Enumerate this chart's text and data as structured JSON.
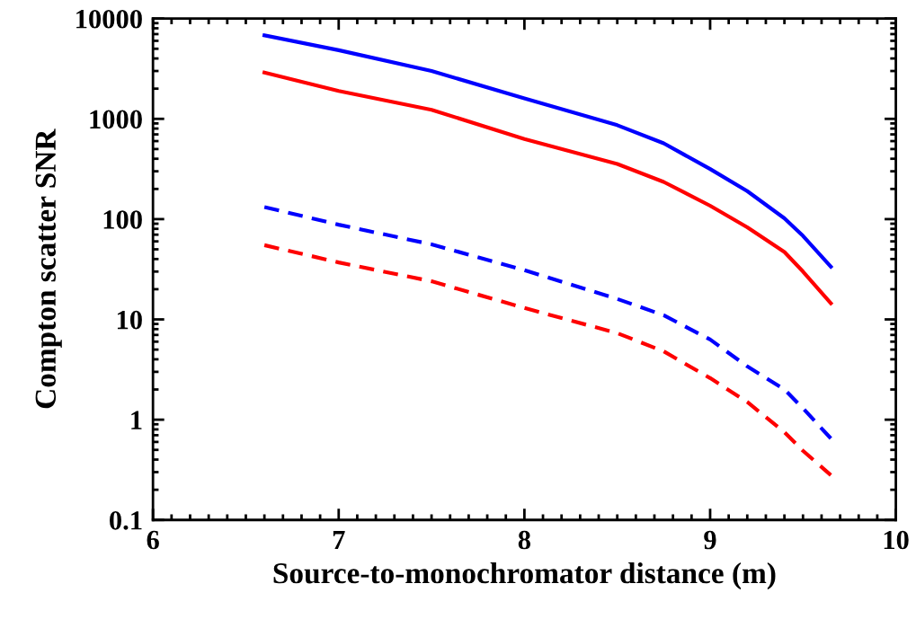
{
  "chart_data": {
    "type": "line",
    "xlabel": "Source-to-monochromator distance (m)",
    "ylabel": "Compton scatter SNR",
    "log": "y",
    "xlim": [
      6,
      10
    ],
    "ylim": [
      0.1,
      10000
    ],
    "xticks": [
      6,
      7,
      8,
      9,
      10
    ],
    "yticks": [
      0.1,
      1,
      10,
      100,
      1000,
      10000
    ],
    "grid": false,
    "marker": "none",
    "series": [
      {
        "color": "#0000ff",
        "line_style": "solid",
        "x": [
          6.6,
          7,
          7.5,
          8,
          8.5,
          8.75,
          9,
          9.2,
          9.4,
          9.5,
          9.65
        ],
        "values": [
          6800,
          4840,
          3000,
          1600,
          865,
          570,
          316,
          190,
          102,
          68,
          33.5
        ]
      },
      {
        "color": "#ff0000",
        "line_style": "solid",
        "x": [
          6.6,
          7,
          7.5,
          8,
          8.5,
          8.75,
          9,
          9.2,
          9.4,
          9.5,
          9.65
        ],
        "values": [
          2900,
          1900,
          1230,
          630,
          355,
          235,
          136,
          83,
          47,
          30,
          14.5
        ]
      },
      {
        "color": "#0000fe",
        "line_style": "dashed",
        "x": [
          6.6,
          7,
          7.5,
          8,
          8.5,
          8.75,
          9,
          9.2,
          9.4,
          9.5,
          9.65
        ],
        "values": [
          132,
          88,
          56,
          31,
          16,
          11,
          6.3,
          3.4,
          2.0,
          1.3,
          0.65
        ]
      },
      {
        "color": "#fe0000",
        "line_style": "dashed",
        "x": [
          6.6,
          7,
          7.5,
          8,
          8.5,
          8.75,
          9,
          9.2,
          9.4,
          9.5,
          9.65
        ],
        "values": [
          55,
          37,
          24,
          13,
          7.3,
          4.8,
          2.6,
          1.5,
          0.75,
          0.49,
          0.28
        ]
      }
    ]
  }
}
